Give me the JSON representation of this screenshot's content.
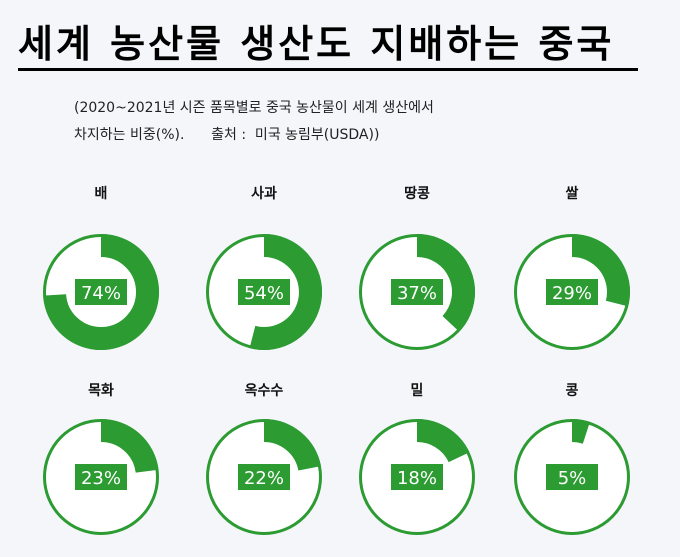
{
  "title": "세계 농산물 생산도 지배하는 중국",
  "note_line1": "(2020~2021년 시즌 품목별로 중국 농산물이 세계 생산에서",
  "note_line2": "차지하는 비중(%).      출처 :  미국 농림부(USDA))",
  "colors": {
    "accent": "#2b9b32",
    "track": "#ffffff",
    "background": "#f4f6f9",
    "label_text": "#ffffff"
  },
  "chart_data": {
    "type": "pie",
    "title": "세계 농산물 생산도 지배하는 중국",
    "unit": "%",
    "categories": [
      "배",
      "사과",
      "땅콩",
      "쌀",
      "목화",
      "옥수수",
      "밀",
      "콩"
    ],
    "values": [
      74,
      54,
      37,
      29,
      23,
      22,
      18,
      5
    ],
    "labels": [
      "74%",
      "54%",
      "37%",
      "29%",
      "23%",
      "22%",
      "18%",
      "5%"
    ]
  }
}
